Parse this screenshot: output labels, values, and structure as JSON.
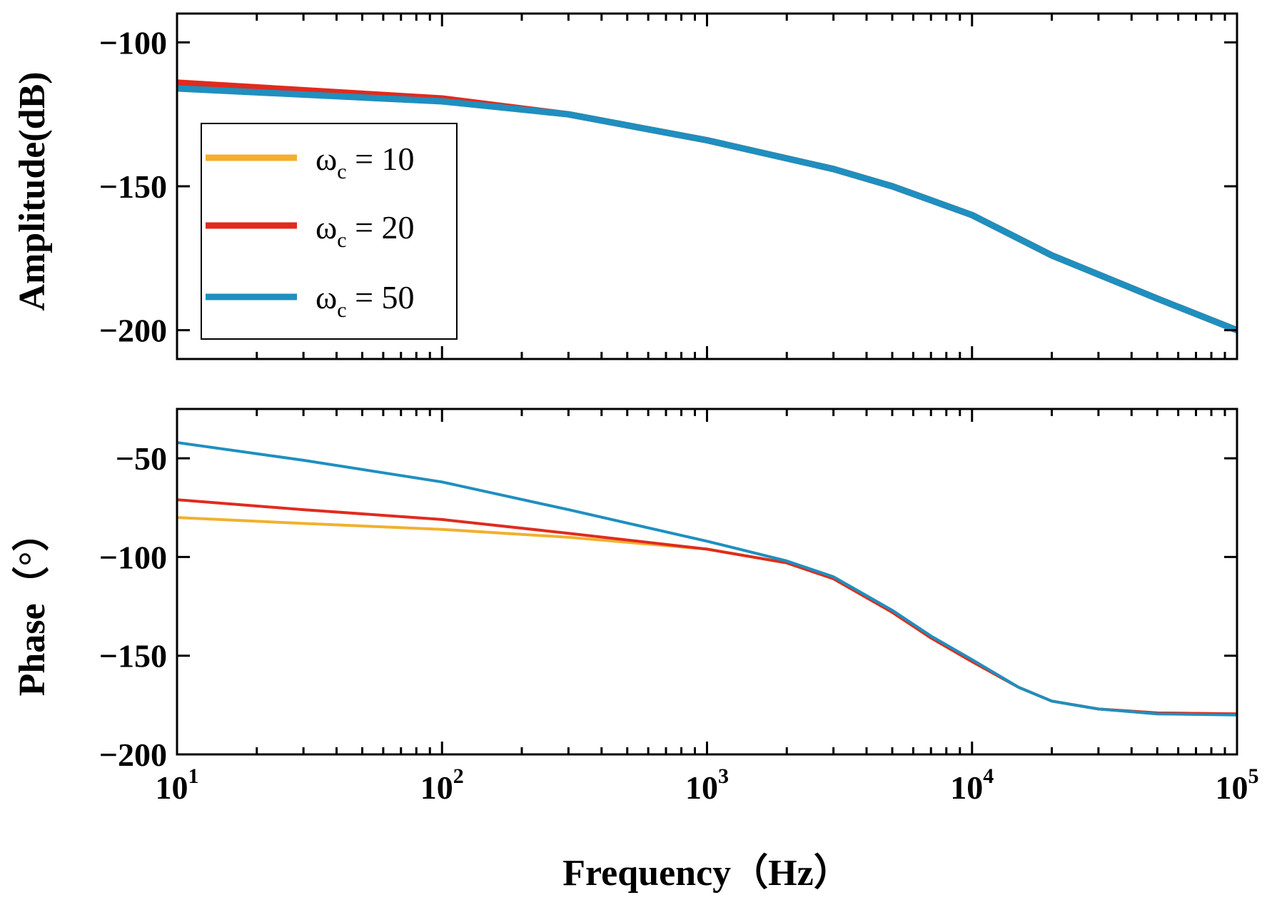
{
  "chart_data": [
    {
      "type": "line",
      "panel": "amplitude",
      "ylabel": "Amplitude(dB)",
      "xlabel": "",
      "xscale": "log",
      "xlim": [
        10,
        100000
      ],
      "ylim": [
        -210,
        -90
      ],
      "yticks": [
        -100,
        -150,
        -200
      ],
      "ytick_labels": [
        "−100",
        "−150",
        "−200"
      ],
      "legend": {
        "placement": "left-middle",
        "entries": [
          "ω",
          "ω",
          "ω"
        ]
      },
      "series": [
        {
          "name": "ωc = 10",
          "symbol": "ω",
          "subscript": "c",
          "eq": " = 10",
          "color": "#F2B02E",
          "x": [
            10,
            100,
            300,
            1000,
            3000,
            5000,
            10000,
            20000,
            50000,
            100000
          ],
          "y": [
            -115,
            -120,
            -125,
            -134,
            -144,
            -150,
            -160,
            -174,
            -189,
            -200
          ]
        },
        {
          "name": "ωc = 20",
          "symbol": "ω",
          "subscript": "c",
          "eq": " = 20",
          "color": "#E02B1E",
          "x": [
            10,
            100,
            300,
            1000,
            3000,
            5000,
            10000,
            20000,
            50000,
            100000
          ],
          "y": [
            -114,
            -119.5,
            -125,
            -134,
            -144,
            -150,
            -160,
            -174,
            -189,
            -200
          ]
        },
        {
          "name": "ωc = 50",
          "symbol": "ω",
          "subscript": "c",
          "eq": " = 50",
          "color": "#1F8FBF",
          "x": [
            10,
            100,
            300,
            1000,
            3000,
            5000,
            10000,
            20000,
            50000,
            100000
          ],
          "y": [
            -116,
            -120.5,
            -125,
            -134,
            -144,
            -150,
            -160,
            -174,
            -189,
            -200
          ]
        }
      ]
    },
    {
      "type": "line",
      "panel": "phase",
      "ylabel": "Phase（°）",
      "xlabel": "Frequency（Hz）",
      "xscale": "log",
      "xlim": [
        10,
        100000
      ],
      "ylim": [
        -200,
        -25
      ],
      "yticks": [
        -50,
        -100,
        -150,
        -200
      ],
      "ytick_labels": [
        "−50",
        "−100",
        "−150",
        "−200"
      ],
      "xticks": [
        10,
        100,
        1000,
        10000,
        100000
      ],
      "xtick_base": "10",
      "xtick_exponents": [
        "1",
        "2",
        "3",
        "4",
        "5"
      ],
      "series": [
        {
          "name": "ωc = 10",
          "color": "#F2B02E",
          "x": [
            10,
            30,
            100,
            300,
            1000,
            2000,
            3000,
            5000,
            7000,
            10000,
            15000,
            20000,
            30000,
            50000,
            100000
          ],
          "y": [
            -80,
            -83,
            -86,
            -90,
            -96,
            -103,
            -111,
            -128,
            -141,
            -153,
            -166,
            -173,
            -177,
            -179,
            -179.5
          ]
        },
        {
          "name": "ωc = 20",
          "color": "#E02B1E",
          "x": [
            10,
            30,
            100,
            300,
            1000,
            2000,
            3000,
            5000,
            7000,
            10000,
            15000,
            20000,
            30000,
            50000,
            100000
          ],
          "y": [
            -71,
            -76,
            -81,
            -88,
            -96,
            -103,
            -111,
            -128,
            -141,
            -153,
            -166,
            -173,
            -177,
            -179,
            -179.5
          ]
        },
        {
          "name": "ωc = 50",
          "color": "#1F8FBF",
          "x": [
            10,
            30,
            100,
            300,
            1000,
            2000,
            3000,
            5000,
            7000,
            10000,
            15000,
            20000,
            30000,
            50000,
            100000
          ],
          "y": [
            -42,
            -51,
            -62,
            -76,
            -92,
            -102,
            -110,
            -127,
            -140,
            -152,
            -166,
            -173,
            -177,
            -179.5,
            -180
          ]
        }
      ]
    }
  ]
}
